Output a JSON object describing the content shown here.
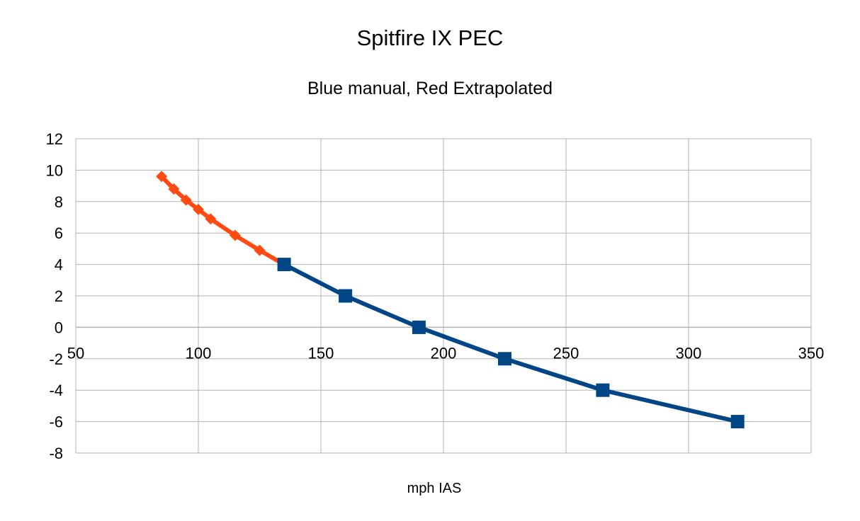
{
  "chart_data": {
    "type": "line",
    "title": "Spitfire IX PEC",
    "subtitle": "Blue manual, Red Extrapolated",
    "xlabel": "mph IAS",
    "ylabel": "",
    "xlim": [
      50,
      350
    ],
    "ylim": [
      -8,
      12
    ],
    "xticks": [
      50,
      100,
      150,
      200,
      250,
      300,
      350
    ],
    "yticks": [
      -8,
      -6,
      -4,
      -2,
      0,
      2,
      4,
      6,
      8,
      10,
      12
    ],
    "grid": true,
    "legend": "none",
    "series": [
      {
        "color": "#ff4b12",
        "marker": "diamond",
        "x": [
          85,
          90,
          95,
          100,
          105,
          115,
          125,
          135
        ],
        "y": [
          9.6,
          8.8,
          8.1,
          7.5,
          6.9,
          5.85,
          4.9,
          4.0
        ]
      },
      {
        "color": "#004586",
        "marker": "square",
        "x": [
          135,
          160,
          190,
          225,
          265,
          320
        ],
        "y": [
          4,
          2,
          0,
          -2,
          -4,
          -6
        ]
      }
    ]
  }
}
